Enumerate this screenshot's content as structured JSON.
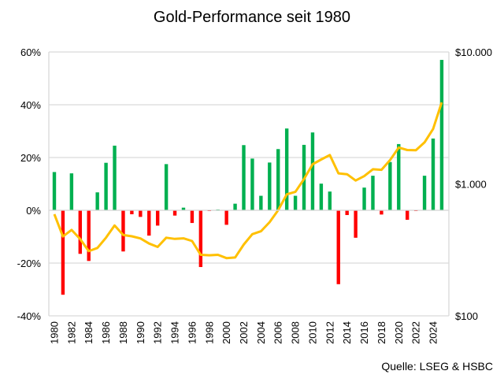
{
  "chart_data": {
    "type": "bar",
    "title": "Gold-Performance seit 1980",
    "source": "Quelle: LSEG & HSBC",
    "categories": [
      1980,
      1981,
      1982,
      1983,
      1984,
      1985,
      1986,
      1987,
      1988,
      1989,
      1990,
      1991,
      1992,
      1993,
      1994,
      1995,
      1996,
      1997,
      1998,
      1999,
      2000,
      2001,
      2002,
      2003,
      2004,
      2005,
      2006,
      2007,
      2008,
      2009,
      2010,
      2011,
      2012,
      2013,
      2014,
      2015,
      2016,
      2017,
      2018,
      2019,
      2020,
      2021,
      2022,
      2023,
      2024,
      2025
    ],
    "x_tick_labels": [
      "1980",
      "1982",
      "1984",
      "1986",
      "1988",
      "1990",
      "1992",
      "1994",
      "1996",
      "1998",
      "2000",
      "2002",
      "2004",
      "2006",
      "2008",
      "2010",
      "2012",
      "2014",
      "2016",
      "2018",
      "2020",
      "2022",
      "2024"
    ],
    "series": [
      {
        "type": "bar",
        "axis": "left",
        "values": [
          14.5,
          -32,
          14,
          -16.5,
          -19.2,
          6.8,
          18,
          24.5,
          -15.6,
          -1.5,
          -2.5,
          -9.6,
          -5.8,
          17.5,
          -2,
          1,
          -4.8,
          -21.5,
          -0.3,
          0.3,
          -5.5,
          2.5,
          24.7,
          19.6,
          5.5,
          18.1,
          23.2,
          31,
          5.5,
          24.8,
          29.5,
          10.1,
          7.1,
          -28,
          -1.8,
          -10.4,
          8.6,
          13.1,
          -1.6,
          18.3,
          25.1,
          -3.6,
          -0.3,
          13.1,
          27.2,
          57
        ],
        "positive_color": "#00B050",
        "negative_color": "#FF0000"
      },
      {
        "type": "line",
        "axis": "right",
        "values": [
          590,
          400,
          448,
          382,
          309,
          327,
          391,
          484,
          410,
          401,
          386,
          353,
          333,
          391,
          383,
          387,
          369,
          290,
          288,
          290,
          274,
          277,
          347,
          416,
          438,
          513,
          632,
          834,
          870,
          1088,
          1410,
          1531,
          1657,
          1202,
          1184,
          1061,
          1146,
          1291,
          1279,
          1515,
          1888,
          1806,
          1800,
          2063,
          2609,
          4150
        ],
        "color": "#FFC000"
      }
    ],
    "y_left": {
      "ylim": [
        -40,
        60
      ],
      "ticks": [
        60,
        40,
        20,
        0,
        -20,
        -40
      ],
      "tick_labels": [
        "60%",
        "40%",
        "20%",
        "0%",
        "-20%",
        "-40%"
      ]
    },
    "y_right": {
      "scale": "log",
      "ylim": [
        100,
        10000
      ],
      "ticks": [
        10000,
        1000,
        100
      ],
      "tick_labels": [
        "$10.000",
        "$1.000",
        "$100"
      ]
    },
    "grid": true,
    "legend": "none"
  }
}
